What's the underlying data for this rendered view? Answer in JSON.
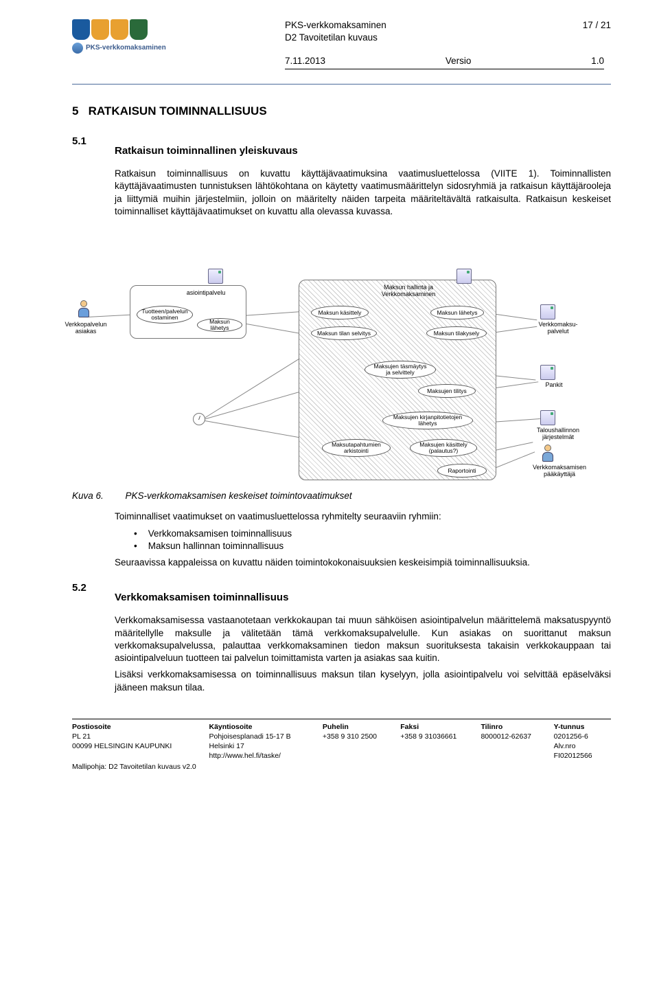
{
  "header": {
    "shields": [
      "#1a5a9e",
      "#e8a030",
      "#e8a030",
      "#2a6a3a"
    ],
    "brand_text": "PKS-verkkomaksaminen",
    "doc_line1": "PKS-verkkomaksaminen",
    "doc_line2": "D2 Tavoitetilan kuvaus",
    "page_label": "17 / 21",
    "date": "7.11.2013",
    "versio_label": "Versio",
    "versio_value": "1.0"
  },
  "section5": {
    "num": "5",
    "title": "RATKAISUN TOIMINNALLISUUS"
  },
  "section51": {
    "num": "5.1",
    "title": "Ratkaisun toiminnallinen yleiskuvaus",
    "para1": "Ratkaisun toiminnallisuus on kuvattu käyttäjävaatimuksina vaatimusluettelossa (VIITE 1). Toiminnallisten käyttäjävaatimusten tunnistuksen lähtökohtana on käytetty vaatimusmäärittelyn sidosryhmiä ja ratkaisun käyttäjärooleja ja liittymiä muihin järjestelmiin, jolloin on määritelty näiden tarpeita määriteltävältä ratkaisulta. Ratkaisun keskeiset toiminnalliset käyttäjävaatimukset on kuvattu alla olevassa kuvassa."
  },
  "diagram": {
    "actors": {
      "customer": "Verkkopalvelun\nasiakas",
      "admin": "Verkkomaksamisen\npääkäyttäjä"
    },
    "services": {
      "asiointi": "asiointipalvelu",
      "hallinta": "Maksun hallinta ja\nVerkkomaksaminen",
      "verkkomaksu": "Verkkomaksu-\npalvelut",
      "pankit": "Pankit",
      "talous": "Taloushallinnon\njärjestelmät"
    },
    "usecases": {
      "tuote": "Tuotteen/palvelun\nostaminen",
      "lahetys1": "Maksun lähetys",
      "kasittely": "Maksun käsittely",
      "lahetys2": "Maksun lähetys",
      "selvitys": "Maksun tilan selvitys",
      "tilakysely": "Maksun tilakysely",
      "tasmaytys": "Maksujen täsmäytys\nja selvittely",
      "tilitys": "Maksujen tilitys",
      "kirjanpito": "Maksujen kirjanpitotietojen\nlähetys",
      "arkistointi": "Maksutapahtumien\narkistointi",
      "palautus": "Maksujen käsittely\n(palautus?)",
      "raportointi": "Raportointi"
    }
  },
  "fig6": {
    "label": "Kuva 6.",
    "caption": "PKS-verkkomaksamisen keskeiset toimintovaatimukset"
  },
  "section51_after": {
    "intro": "Toiminnalliset vaatimukset on vaatimusluettelossa ryhmitelty seuraaviin ryhmiin:",
    "b1": "Verkkomaksamisen toiminnallisuus",
    "b2": "Maksun hallinnan toiminnallisuus",
    "outro": "Seuraavissa kappaleissa on kuvattu näiden toimintokokonaisuuksien keskeisimpiä toiminnallisuuksia."
  },
  "section52": {
    "num": "5.2",
    "title": "Verkkomaksamisen toiminnallisuus",
    "para1": "Verkkomaksamisessa vastaanotetaan verkkokaupan tai muun sähköisen asiointipalvelun määrittelemä maksatuspyyntö määritellylle maksulle ja välitetään tämä verkkomaksupalvelulle. Kun asiakas on suorittanut maksun verkkomaksupalvelussa, palauttaa verkkomaksaminen tiedon maksun suorituksesta takaisin verkkokauppaan tai asiointipalveluun tuotteen tai palvelun toimittamista varten ja asiakas saa kuitin.",
    "para2": "Lisäksi verkkomaksamisessa on toiminnallisuus maksun tilan kyselyyn, jolla asiointipalvelu voi selvittää epäselväksi jääneen maksun tilaa."
  },
  "footer": {
    "h": [
      "Postiosoite",
      "Käyntiosoite",
      "Puhelin",
      "Faksi",
      "Tilinro",
      "Y-tunnus"
    ],
    "r1": [
      "PL 21",
      "Pohjoisesplanadi 15-17 B",
      "+358 9 310 2500",
      "+358 9 31036661",
      "8000012-62637",
      "0201256-6"
    ],
    "r2": [
      "00099 HELSINGIN KAUPUNKI",
      "Helsinki 17",
      "",
      "",
      "",
      "Alv.nro"
    ],
    "r3": [
      "",
      "http://www.hel.fi/taske/",
      "",
      "",
      "",
      "FI02012566"
    ],
    "template": "Mallipohja: D2 Tavoitetilan kuvaus v2.0"
  }
}
